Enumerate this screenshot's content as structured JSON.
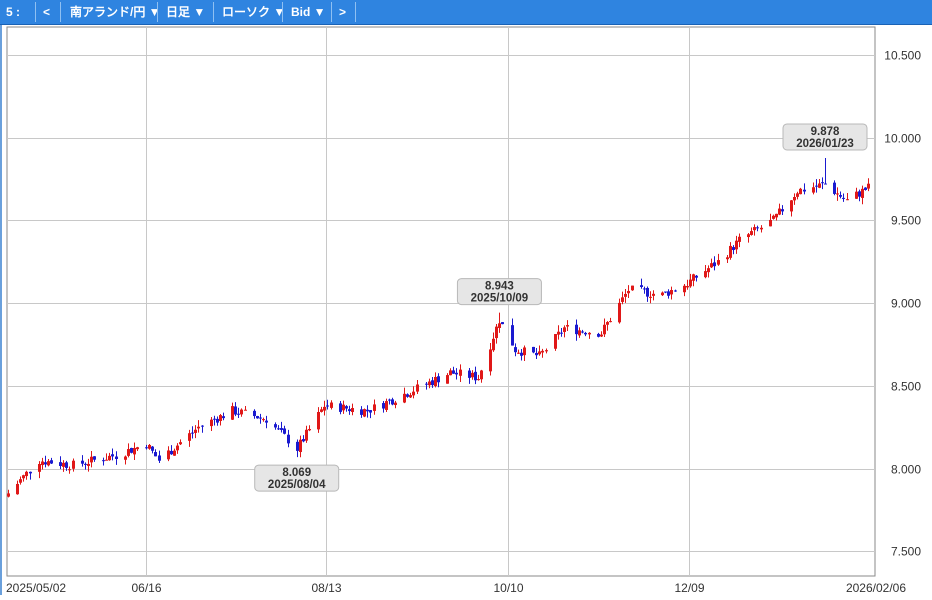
{
  "toolbar": {
    "period": "5 :",
    "prev": "<",
    "pair": "南アランド/円 ▼",
    "timeframe": "日足 ▼",
    "chart_type": "ローソク ▼",
    "price_side": "Bid ▼",
    "next": ">"
  },
  "colors": {
    "up": "#e01818",
    "down": "#1a1ad0",
    "grid": "#c8c8c8",
    "toolbar": "#2f84e0"
  },
  "chart_data": {
    "type": "candlestick",
    "title": "",
    "ylim": [
      7.35,
      10.67
    ],
    "y_ticks": [
      "10.500",
      "10.000",
      "9.500",
      "9.000",
      "8.500",
      "8.000",
      "7.500"
    ],
    "y_tick_values": [
      10.5,
      10.0,
      9.5,
      9.0,
      8.5,
      8.0,
      7.5
    ],
    "x_ticks": [
      "2025/05/02",
      "06/16",
      "08/13",
      "10/10",
      "12/09",
      "2026/02/06"
    ],
    "grid": true,
    "start_date": "2025/05/02",
    "end_date": "2026/02/06",
    "anchors": [
      {
        "date": "2025-05-02",
        "v": 7.85
      },
      {
        "date": "2025-05-12",
        "v": 8.05
      },
      {
        "date": "2025-05-23",
        "v": 8.02
      },
      {
        "date": "2025-06-06",
        "v": 8.08
      },
      {
        "date": "2025-06-16",
        "v": 8.15
      },
      {
        "date": "2025-06-20",
        "v": 8.05
      },
      {
        "date": "2025-07-03",
        "v": 8.25
      },
      {
        "date": "2025-07-14",
        "v": 8.35
      },
      {
        "date": "2025-07-25",
        "v": 8.3
      },
      {
        "date": "2025-08-04",
        "v": 8.12
      },
      {
        "date": "2025-08-13",
        "v": 8.38
      },
      {
        "date": "2025-08-27",
        "v": 8.35
      },
      {
        "date": "2025-09-08",
        "v": 8.45
      },
      {
        "date": "2025-09-23",
        "v": 8.58
      },
      {
        "date": "2025-10-02",
        "v": 8.55
      },
      {
        "date": "2025-10-09",
        "v": 8.9
      },
      {
        "date": "2025-10-14",
        "v": 8.72
      },
      {
        "date": "2025-10-22",
        "v": 8.68
      },
      {
        "date": "2025-10-30",
        "v": 8.85
      },
      {
        "date": "2025-11-11",
        "v": 8.82
      },
      {
        "date": "2025-11-20",
        "v": 9.08
      },
      {
        "date": "2025-12-01",
        "v": 9.05
      },
      {
        "date": "2025-12-09",
        "v": 9.12
      },
      {
        "date": "2025-12-19",
        "v": 9.25
      },
      {
        "date": "2025-12-26",
        "v": 9.38
      },
      {
        "date": "2026-01-06",
        "v": 9.5
      },
      {
        "date": "2026-01-14",
        "v": 9.68
      },
      {
        "date": "2026-01-23",
        "v": 9.72
      },
      {
        "date": "2026-01-30",
        "v": 9.62
      },
      {
        "date": "2026-02-06",
        "v": 9.7
      }
    ],
    "annotations": [
      {
        "value": "8.069",
        "date": "2025/08/04",
        "position": "below"
      },
      {
        "value": "8.943",
        "date": "2025/10/09",
        "position": "above"
      },
      {
        "value": "9.878",
        "date": "2026/01/23",
        "position": "above"
      }
    ]
  }
}
